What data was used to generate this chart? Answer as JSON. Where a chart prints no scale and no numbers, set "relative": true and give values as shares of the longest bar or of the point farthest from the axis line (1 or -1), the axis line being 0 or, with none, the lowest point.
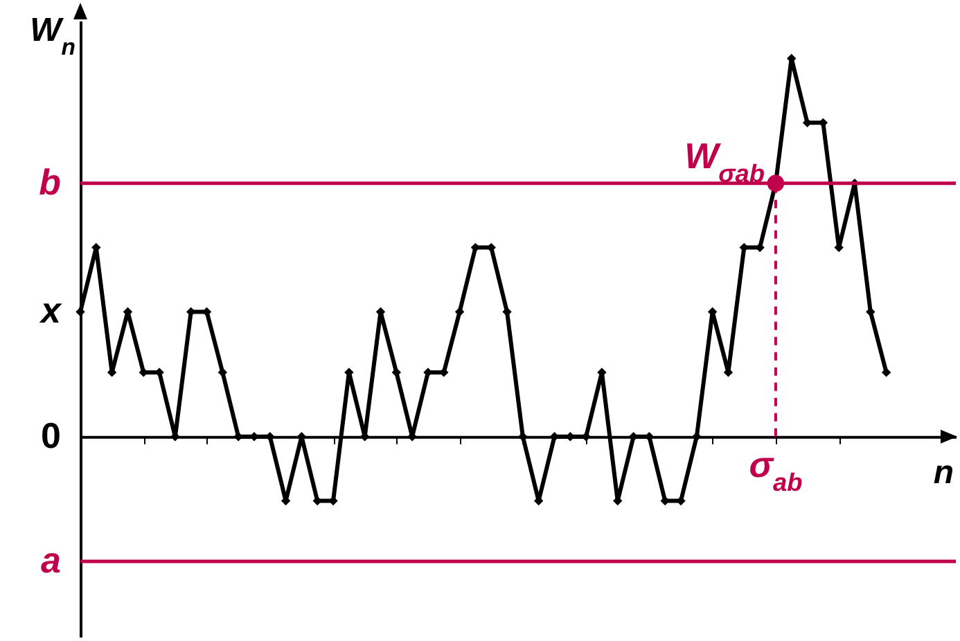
{
  "chart_data": {
    "type": "line",
    "xlabel": "n",
    "ylabel": "W$_{n}$",
    "relative": true,
    "categories": [
      null,
      null,
      null,
      null,
      null,
      null,
      null,
      null,
      null,
      null,
      null,
      null,
      null,
      null,
      null,
      null,
      null,
      null,
      null,
      null,
      null,
      null,
      null,
      null,
      null,
      null,
      null,
      null,
      null,
      null,
      null,
      null,
      null,
      null,
      null,
      null,
      null,
      null,
      null,
      null,
      null,
      null,
      null,
      null,
      null,
      null,
      null,
      null,
      null,
      null,
      null,
      null
    ],
    "series": [
      {
        "color": "#000000",
        "values": [
          0.33,
          0.5,
          0.17,
          0.33,
          0.17,
          0.17,
          0,
          0.33,
          0.33,
          0.17,
          0,
          0,
          0,
          -0.17,
          0,
          -0.17,
          -0.17,
          0.17,
          0,
          0.33,
          0.17,
          0,
          0.17,
          0.17,
          0.33,
          0.5,
          0.5,
          0.33,
          0,
          -0.17,
          0,
          0,
          0,
          0.17,
          -0.17,
          0,
          0,
          -0.17,
          -0.17,
          0,
          0.33,
          0.17,
          0.5,
          0.5,
          0.67,
          1,
          0.83,
          0.83,
          0.5,
          0.67,
          0.33,
          0.17
        ]
      }
    ],
    "ref_lines": [
      {
        "axis": "y",
        "value": 0.67,
        "label": "b",
        "color": "#c0004a"
      },
      {
        "axis": "y",
        "value": -0.33,
        "label": "a",
        "color": "#c0004a"
      }
    ],
    "annotations": [
      "0",
      "x",
      "W$_{σab}$",
      "σ$_{ab}$"
    ],
    "marker": "diamond",
    "line_style": "solid"
  }
}
